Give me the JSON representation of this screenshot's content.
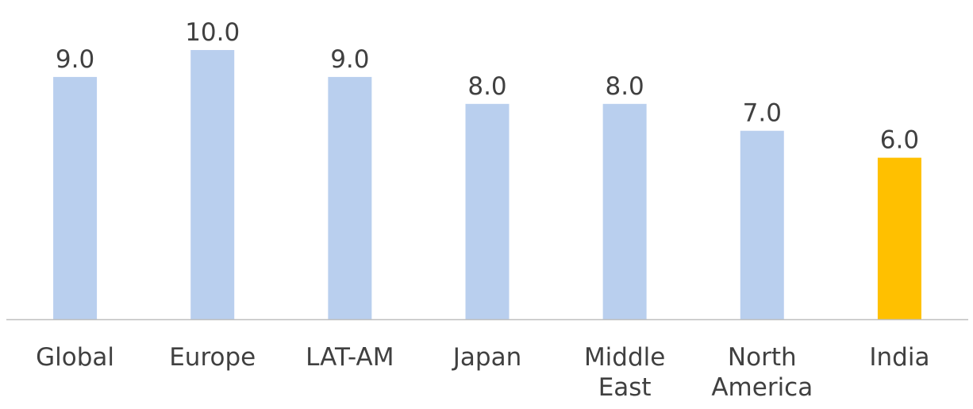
{
  "chart_data": {
    "type": "bar",
    "categories": [
      [
        "Global"
      ],
      [
        "Europe"
      ],
      [
        "LAT-AM"
      ],
      [
        "Japan"
      ],
      [
        "Middle",
        "East"
      ],
      [
        "North",
        "America"
      ],
      [
        "India"
      ]
    ],
    "values": [
      9.0,
      10.0,
      9.0,
      8.0,
      8.0,
      7.0,
      6.0
    ],
    "value_labels": [
      "9.0",
      "10.0",
      "9.0",
      "8.0",
      "8.0",
      "7.0",
      "6.0"
    ],
    "ylim": [
      0,
      10
    ],
    "grid": false,
    "legend": "none",
    "colors": {
      "default_bar": "#B9CFEE",
      "highlight_bar": "#FFC000",
      "axis_line": "#BFBFBF",
      "text": "#404040"
    },
    "highlight_index": 6
  }
}
